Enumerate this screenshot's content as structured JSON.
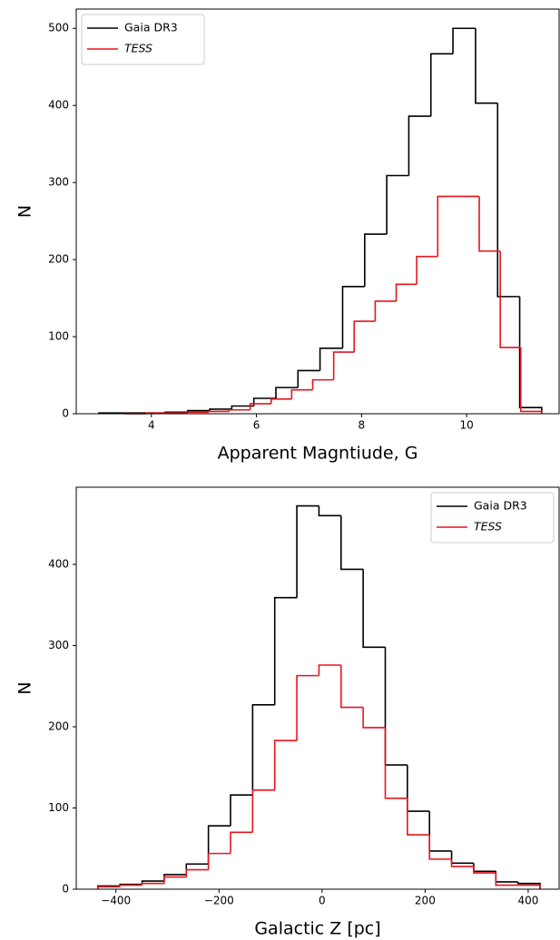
{
  "chart_data": [
    {
      "type": "histogram",
      "xlabel": "Apparent Magntiude, G",
      "ylabel": "N",
      "xlim": [
        2.57,
        11.76
      ],
      "ylim": [
        0,
        525
      ],
      "xticks": [
        4,
        6,
        8,
        10
      ],
      "yticks": [
        0,
        100,
        200,
        300,
        400,
        500
      ],
      "legend": "upper left",
      "series": [
        {
          "name": "Gaia DR3",
          "color": "#000000",
          "bins": [
            3.0,
            3.42,
            3.84,
            4.26,
            4.69,
            5.11,
            5.53,
            5.95,
            6.37,
            6.79,
            7.21,
            7.64,
            8.06,
            8.48,
            8.9,
            9.32,
            9.74,
            10.17,
            10.59,
            11.01,
            11.43
          ],
          "values": [
            1,
            1,
            1,
            2,
            4,
            6,
            10,
            20,
            34,
            56,
            85,
            165,
            233,
            309,
            386,
            467,
            500,
            403,
            152,
            8
          ]
        },
        {
          "name": "TESS",
          "color": "#e8141c",
          "bins": [
            3.5,
            3.9,
            4.29,
            4.69,
            5.09,
            5.48,
            5.88,
            6.28,
            6.67,
            7.07,
            7.47,
            7.86,
            8.26,
            8.66,
            9.05,
            9.45,
            9.84,
            10.24,
            10.64,
            11.03,
            11.43
          ],
          "values": [
            0,
            1,
            1,
            2,
            3,
            5,
            13,
            19,
            31,
            44,
            80,
            120,
            146,
            168,
            204,
            282,
            282,
            211,
            86,
            3
          ]
        }
      ]
    },
    {
      "type": "histogram",
      "xlabel": "Galactic Z [pc]",
      "ylabel": "N",
      "xlim": [
        -477,
        460
      ],
      "ylim": [
        0,
        495
      ],
      "xticks": [
        {
          "value": -400,
          "label": "−400"
        },
        {
          "value": -200,
          "label": "−200"
        },
        0,
        200,
        400
      ],
      "yticks": [
        0,
        100,
        200,
        300,
        400
      ],
      "legend": "upper right",
      "series": [
        {
          "name": "Gaia DR3",
          "color": "#000000",
          "bins": [
            -435,
            -392.1,
            -349.2,
            -306.3,
            -263.4,
            -220.5,
            -177.6,
            -134.7,
            -91.8,
            -48.9,
            -6,
            36.9,
            79.8,
            122.7,
            165.6,
            208.5,
            251.4,
            294.3,
            337.2,
            380.1,
            423
          ],
          "values": [
            4,
            6,
            10,
            18,
            31,
            78,
            116,
            227,
            359,
            472,
            460,
            394,
            298,
            153,
            96,
            47,
            32,
            22,
            9,
            7
          ]
        },
        {
          "name": "TESS",
          "color": "#e8141c",
          "bins": [
            -435,
            -392.1,
            -349.2,
            -306.3,
            -263.4,
            -220.5,
            -177.6,
            -134.7,
            -91.8,
            -48.9,
            -6,
            36.9,
            79.8,
            122.7,
            165.6,
            208.5,
            251.4,
            294.3,
            337.2,
            380.1,
            423
          ],
          "values": [
            3,
            5,
            7,
            15,
            24,
            44,
            70,
            122,
            183,
            263,
            276,
            224,
            199,
            112,
            67,
            37,
            28,
            20,
            5,
            5
          ]
        }
      ]
    }
  ]
}
